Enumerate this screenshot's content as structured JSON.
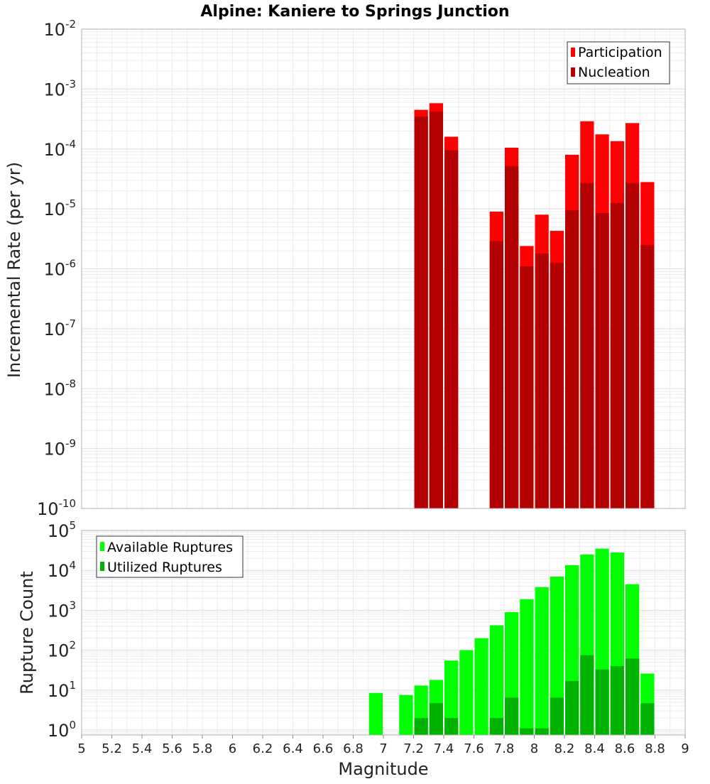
{
  "title": "Alpine: Kaniere to Springs Junction",
  "chart_data": [
    {
      "type": "bar",
      "ylabel": "Incremental Rate (per yr)",
      "xlabel": "",
      "xlim": [
        5,
        9
      ],
      "ylim": [
        1e-10,
        0.01
      ],
      "yscale": "log",
      "grid": true,
      "legend_position": "top-right",
      "ytick_exponents": [
        "-10",
        "-9",
        "-8",
        "-7",
        "-6",
        "-5",
        "-4",
        "-3",
        "-2"
      ],
      "ytick_base": "10",
      "x": [
        7.25,
        7.35,
        7.45,
        7.75,
        7.85,
        7.95,
        8.05,
        8.15,
        8.25,
        8.35,
        8.45,
        8.55,
        8.65,
        8.75
      ],
      "series": [
        {
          "name": "Participation",
          "color": "#ff0000",
          "values": [
            0.00045,
            0.00058,
            0.00016,
            9e-06,
            0.000105,
            2.4e-06,
            8e-06,
            4.3e-06,
            8e-05,
            0.00029,
            0.000175,
            0.000135,
            0.00027,
            2.8e-05
          ]
        },
        {
          "name": "Nucleation",
          "color": "#b30000",
          "values": [
            0.00035,
            0.00042,
            9.5e-05,
            2.9e-06,
            5.2e-05,
            1.1e-06,
            1.8e-06,
            1.25e-06,
            9.5e-06,
            2.7e-05,
            8.5e-06,
            1.25e-05,
            2.7e-05,
            2.5e-06
          ]
        }
      ]
    },
    {
      "type": "bar",
      "ylabel": "Rupture Count",
      "xlabel": "Magnitude",
      "xlim": [
        5,
        9
      ],
      "ylim": [
        0.75,
        100000.0
      ],
      "yscale": "log",
      "grid": true,
      "legend_position": "top-left",
      "ytick_exponents": [
        "0",
        "1",
        "2",
        "3",
        "4",
        "5"
      ],
      "ytick_base": "10",
      "xticks": [
        "5",
        "5.2",
        "5.4",
        "5.6",
        "5.8",
        "6",
        "6.2",
        "6.4",
        "6.6",
        "6.8",
        "7",
        "7.2",
        "7.4",
        "7.6",
        "7.8",
        "8",
        "8.2",
        "8.4",
        "8.6",
        "8.8",
        "9"
      ],
      "x": [
        6.95,
        7.15,
        7.25,
        7.35,
        7.45,
        7.55,
        7.65,
        7.75,
        7.85,
        7.95,
        8.05,
        8.15,
        8.25,
        8.35,
        8.45,
        8.55,
        8.65,
        8.75
      ],
      "series": [
        {
          "name": "Available Ruptures",
          "color": "#00ff00",
          "values": [
            8.5,
            7.5,
            13,
            18,
            55,
            100,
            200,
            420,
            900,
            1900,
            3800,
            7000,
            13500,
            25000,
            35000,
            28000,
            4500,
            26
          ]
        },
        {
          "name": "Utilized Ruptures",
          "color": "#00b300",
          "values": [
            null,
            null,
            2,
            4.7,
            2,
            null,
            null,
            2,
            6.5,
            1.1,
            1.1,
            6.5,
            17,
            75,
            33,
            40,
            62,
            4.7
          ]
        }
      ]
    }
  ]
}
